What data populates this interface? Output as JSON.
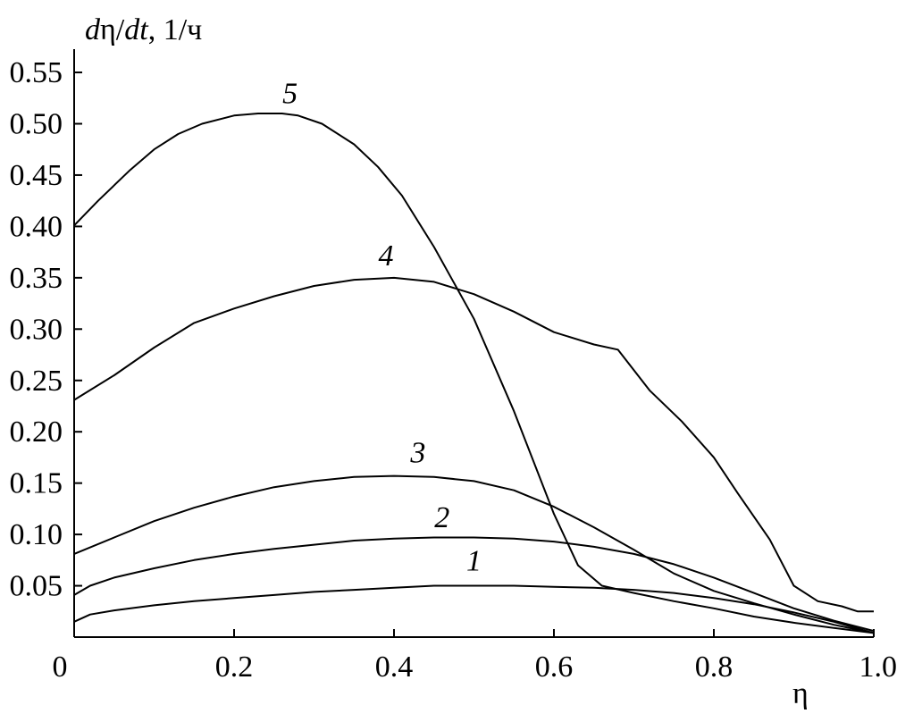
{
  "chart_data": {
    "type": "line",
    "xlabel": "η",
    "ylabel": "dη/dt, 1/ч",
    "ylabel_parts": {
      "d1": "d",
      "eta": "η",
      "slash": "/",
      "dt": "dt",
      "unit": ", 1/ч"
    },
    "xlim": [
      0,
      1.0
    ],
    "ylim": [
      0,
      0.57
    ],
    "x_ticks": [
      0,
      0.2,
      0.4,
      0.6,
      0.8,
      1.0
    ],
    "x_tick_labels": [
      "0",
      "0.2",
      "0.4",
      "0.6",
      "0.8",
      "1.0"
    ],
    "y_ticks": [
      0.05,
      0.1,
      0.15,
      0.2,
      0.25,
      0.3,
      0.35,
      0.4,
      0.45,
      0.5,
      0.55
    ],
    "y_tick_labels": [
      "0.05",
      "0.10",
      "0.15",
      "0.20",
      "0.25",
      "0.30",
      "0.35",
      "0.40",
      "0.45",
      "0.50",
      "0.55"
    ],
    "grid": false,
    "series": [
      {
        "name": "1",
        "label_at": [
          0.5,
          0.065
        ],
        "x": [
          0,
          0.02,
          0.05,
          0.1,
          0.15,
          0.2,
          0.25,
          0.3,
          0.35,
          0.4,
          0.45,
          0.5,
          0.55,
          0.6,
          0.65,
          0.7,
          0.75,
          0.8,
          0.85,
          0.9,
          0.95,
          1.0
        ],
        "y": [
          0.015,
          0.022,
          0.026,
          0.031,
          0.035,
          0.038,
          0.041,
          0.044,
          0.046,
          0.048,
          0.05,
          0.05,
          0.05,
          0.049,
          0.048,
          0.046,
          0.043,
          0.038,
          0.032,
          0.024,
          0.015,
          0.004
        ]
      },
      {
        "name": "2",
        "label_at": [
          0.46,
          0.107
        ],
        "x": [
          0,
          0.02,
          0.05,
          0.1,
          0.15,
          0.2,
          0.25,
          0.3,
          0.35,
          0.4,
          0.45,
          0.5,
          0.55,
          0.6,
          0.65,
          0.7,
          0.75,
          0.8,
          0.85,
          0.9,
          0.95,
          1.0
        ],
        "y": [
          0.041,
          0.05,
          0.058,
          0.067,
          0.075,
          0.081,
          0.086,
          0.09,
          0.094,
          0.096,
          0.097,
          0.097,
          0.096,
          0.093,
          0.088,
          0.081,
          0.071,
          0.058,
          0.043,
          0.028,
          0.016,
          0.006
        ]
      },
      {
        "name": "3",
        "label_at": [
          0.43,
          0.17
        ],
        "x": [
          0,
          0.05,
          0.1,
          0.15,
          0.2,
          0.25,
          0.3,
          0.35,
          0.4,
          0.45,
          0.5,
          0.55,
          0.6,
          0.65,
          0.7,
          0.75,
          0.8,
          0.85,
          0.9,
          0.95,
          1.0
        ],
        "y": [
          0.081,
          0.097,
          0.113,
          0.126,
          0.137,
          0.146,
          0.152,
          0.156,
          0.157,
          0.156,
          0.152,
          0.143,
          0.127,
          0.107,
          0.085,
          0.062,
          0.045,
          0.033,
          0.022,
          0.012,
          0.004
        ]
      },
      {
        "name": "4",
        "label_at": [
          0.39,
          0.362
        ],
        "x": [
          0,
          0.05,
          0.1,
          0.15,
          0.2,
          0.25,
          0.3,
          0.35,
          0.4,
          0.45,
          0.5,
          0.55,
          0.6,
          0.65,
          0.68,
          0.72,
          0.76,
          0.8,
          0.83,
          0.87,
          0.9,
          0.93,
          0.96,
          0.98,
          1.0
        ],
        "y": [
          0.231,
          0.255,
          0.282,
          0.306,
          0.32,
          0.332,
          0.342,
          0.348,
          0.35,
          0.346,
          0.334,
          0.317,
          0.297,
          0.285,
          0.28,
          0.24,
          0.21,
          0.175,
          0.14,
          0.095,
          0.05,
          0.035,
          0.03,
          0.025,
          0.025
        ]
      },
      {
        "name": "5",
        "label_at": [
          0.27,
          0.52
        ],
        "x": [
          0,
          0.03,
          0.07,
          0.1,
          0.13,
          0.16,
          0.2,
          0.23,
          0.26,
          0.28,
          0.31,
          0.35,
          0.38,
          0.41,
          0.45,
          0.5,
          0.55,
          0.6,
          0.63,
          0.66,
          0.7,
          0.75,
          0.8,
          0.85,
          0.9,
          0.95,
          1.0
        ],
        "y": [
          0.401,
          0.425,
          0.455,
          0.475,
          0.49,
          0.5,
          0.508,
          0.51,
          0.51,
          0.508,
          0.5,
          0.48,
          0.458,
          0.43,
          0.38,
          0.31,
          0.22,
          0.12,
          0.07,
          0.05,
          0.043,
          0.035,
          0.028,
          0.02,
          0.014,
          0.009,
          0.004
        ]
      }
    ]
  }
}
